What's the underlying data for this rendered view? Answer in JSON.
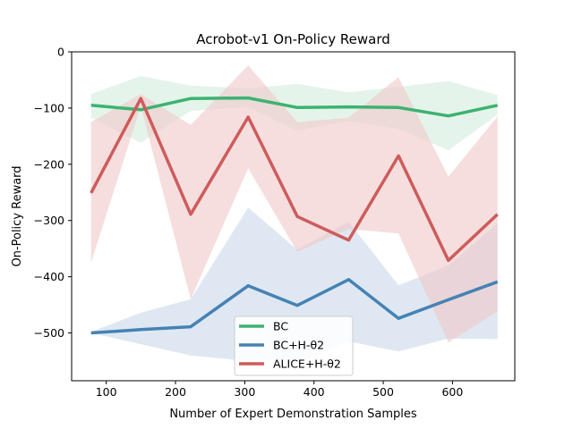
{
  "chart_data": {
    "type": "line",
    "title": "Acrobot-v1 On-Policy Reward",
    "xlabel": "Number of Expert Demonstration Samples",
    "ylabel": "On-Policy Reward",
    "xlim": [
      50,
      690
    ],
    "ylim": [
      -585,
      0
    ],
    "xticks": [
      100,
      200,
      300,
      400,
      500,
      600
    ],
    "yticks": [
      0,
      -100,
      -200,
      -300,
      -400,
      -500
    ],
    "x": [
      78,
      150,
      222,
      305,
      376,
      450,
      522,
      594,
      665
    ],
    "legend_position": "lower center",
    "grid": false,
    "series": [
      {
        "name": "BC",
        "color": "#3cb371",
        "band_color": "#d4ecdd",
        "values": [
          -95,
          -103,
          -83,
          -82,
          -99,
          -98,
          -99,
          -114,
          -95
        ],
        "band_upper": [
          -75,
          -43,
          -60,
          -65,
          -57,
          -72,
          -62,
          -52,
          -77
        ],
        "band_lower": [
          -117,
          -162,
          -105,
          -98,
          -140,
          -123,
          -137,
          -175,
          -112
        ]
      },
      {
        "name": "BC+H-θ2",
        "color": "#4682b4",
        "band_color": "#c9d9e9",
        "values": [
          -500,
          -494,
          -489,
          -416,
          -451,
          -405,
          -474,
          -441,
          -409
        ],
        "band_upper": [
          -498,
          -464,
          -440,
          -277,
          -352,
          -302,
          -415,
          -380,
          -305
        ],
        "band_lower": [
          -500,
          -520,
          -540,
          -550,
          -555,
          -515,
          -533,
          -510,
          -511
        ]
      },
      {
        "name": "ALICE+H-θ2",
        "color": "#cd5c5c",
        "band_color": "#f0c8c8",
        "values": [
          -251,
          -83,
          -289,
          -116,
          -293,
          -335,
          -185,
          -371,
          -289
        ],
        "band_upper": [
          -125,
          -75,
          -130,
          -24,
          -125,
          -117,
          -45,
          -222,
          -115
        ],
        "band_lower": [
          -375,
          -97,
          -440,
          -207,
          -356,
          -315,
          -323,
          -517,
          -462
        ]
      }
    ]
  }
}
